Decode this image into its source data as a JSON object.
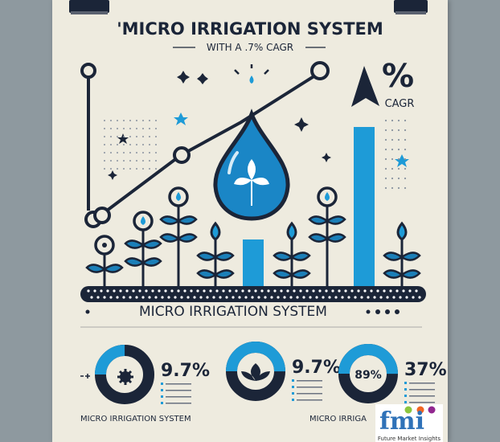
{
  "header": {
    "title": "'MICRO IRRIGATION SYSTEM",
    "subtitle": "WITH A .7% CAGR"
  },
  "badge": {
    "symbol": "%",
    "label": "CAGR"
  },
  "band": {
    "label": "MICRO IRRIGATION SYSTEM"
  },
  "stats": [
    {
      "value": "9.7%",
      "center": "",
      "share": 0.25
    },
    {
      "value": "9.7%",
      "center": "",
      "share": 0.5
    },
    {
      "value": "37%",
      "center": "89%",
      "share": 0.5
    }
  ],
  "footer_labels": [
    "MICRO IRRIGATION SYSTEM",
    "MICRO IRRIGA"
  ],
  "logo": {
    "text": "fmi",
    "tagline": "Future Market Insights"
  },
  "colors": {
    "accent": "#1e9bd7",
    "dark": "#1b2538",
    "paper": "#eeebdf",
    "background": "#8e999f"
  }
}
